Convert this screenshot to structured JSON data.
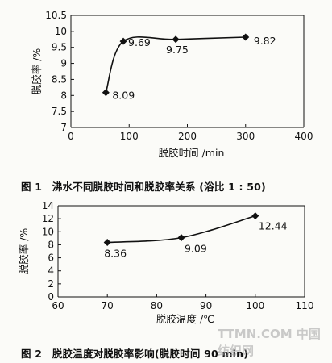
{
  "chart_data": [
    {
      "type": "line",
      "x": [
        60,
        90,
        180,
        300
      ],
      "values": [
        8.09,
        9.69,
        9.75,
        9.82
      ],
      "data_labels": [
        "8.09",
        "9.69",
        "9.75",
        "9.82"
      ],
      "xlabel": "脱胶时间 /min",
      "ylabel": "脱胶率 /%",
      "xlim": [
        0,
        400
      ],
      "ylim": [
        7,
        10.5
      ],
      "xticks": [
        "0",
        "100",
        "200",
        "300",
        "400"
      ],
      "yticks": [
        "7",
        "7.5",
        "8",
        "8.5",
        "9",
        "9.5",
        "10",
        "10.5"
      ],
      "caption": "图 1　沸水不同脱胶时间和脱胶率关系 (浴比 1 : 50)",
      "grid": false
    },
    {
      "type": "line",
      "x": [
        70,
        85,
        100
      ],
      "values": [
        8.36,
        9.09,
        12.44
      ],
      "data_labels": [
        "8.36",
        "9.09",
        "12.44"
      ],
      "xlabel": "脱胶温度 /℃",
      "ylabel": "脱胶率 /%",
      "xlim": [
        60,
        110
      ],
      "ylim": [
        0,
        14
      ],
      "xticks": [
        "60",
        "70",
        "80",
        "90",
        "100",
        "110"
      ],
      "yticks": [
        "0",
        "2",
        "4",
        "6",
        "8",
        "10",
        "12",
        "14"
      ],
      "caption": "图 2　脱胶温度对脱胶率影响(脱胶时间 90 min)",
      "grid": false
    }
  ],
  "watermark": "TTMN.COM 中国纺织网"
}
